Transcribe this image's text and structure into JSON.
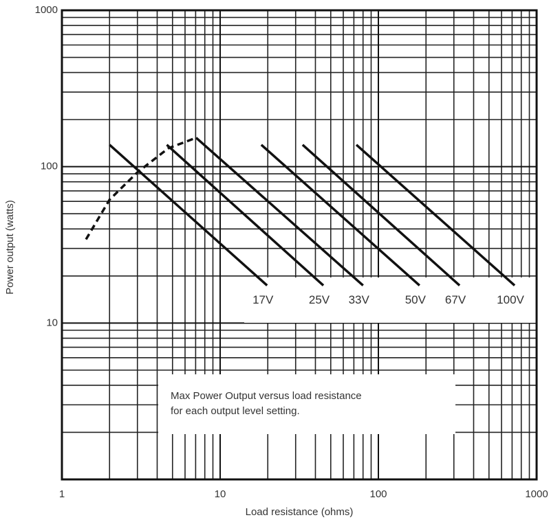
{
  "chart_data": {
    "type": "line",
    "xlabel": "Load resistance (ohms)",
    "ylabel": "Power output (watts)",
    "annotation": [
      "Max Power Output versus load resistance",
      "for each output level setting."
    ],
    "xscale": "log",
    "yscale": "log",
    "xlim": [
      1,
      1000
    ],
    "ylim": [
      1,
      1000
    ],
    "xticks": [
      1,
      10,
      100,
      1000
    ],
    "yticks": [
      10,
      100,
      1000
    ],
    "grid": true,
    "color": "#111111",
    "series": [
      {
        "name": "17V",
        "x": [
          2.0,
          19.8
        ],
        "values": [
          138,
          17.4
        ]
      },
      {
        "name": "25V",
        "x": [
          4.6,
          44.9
        ],
        "values": [
          138,
          17.4
        ]
      },
      {
        "name": "33V",
        "x": [
          7.05,
          80
        ],
        "values": [
          153,
          17.4
        ]
      },
      {
        "name": "50V",
        "x": [
          18.2,
          182
        ],
        "values": [
          138,
          17.4
        ]
      },
      {
        "name": "67V",
        "x": [
          33.2,
          326
        ],
        "values": [
          138,
          17.4
        ]
      },
      {
        "name": "100V",
        "x": [
          72.6,
          726
        ],
        "values": [
          138,
          17.4
        ]
      },
      {
        "x": [
          1.42,
          2.0,
          3.0,
          4.7,
          7.05
        ],
        "values": [
          34.3,
          61.5,
          92,
          131,
          153
        ],
        "dashed": true
      }
    ]
  }
}
